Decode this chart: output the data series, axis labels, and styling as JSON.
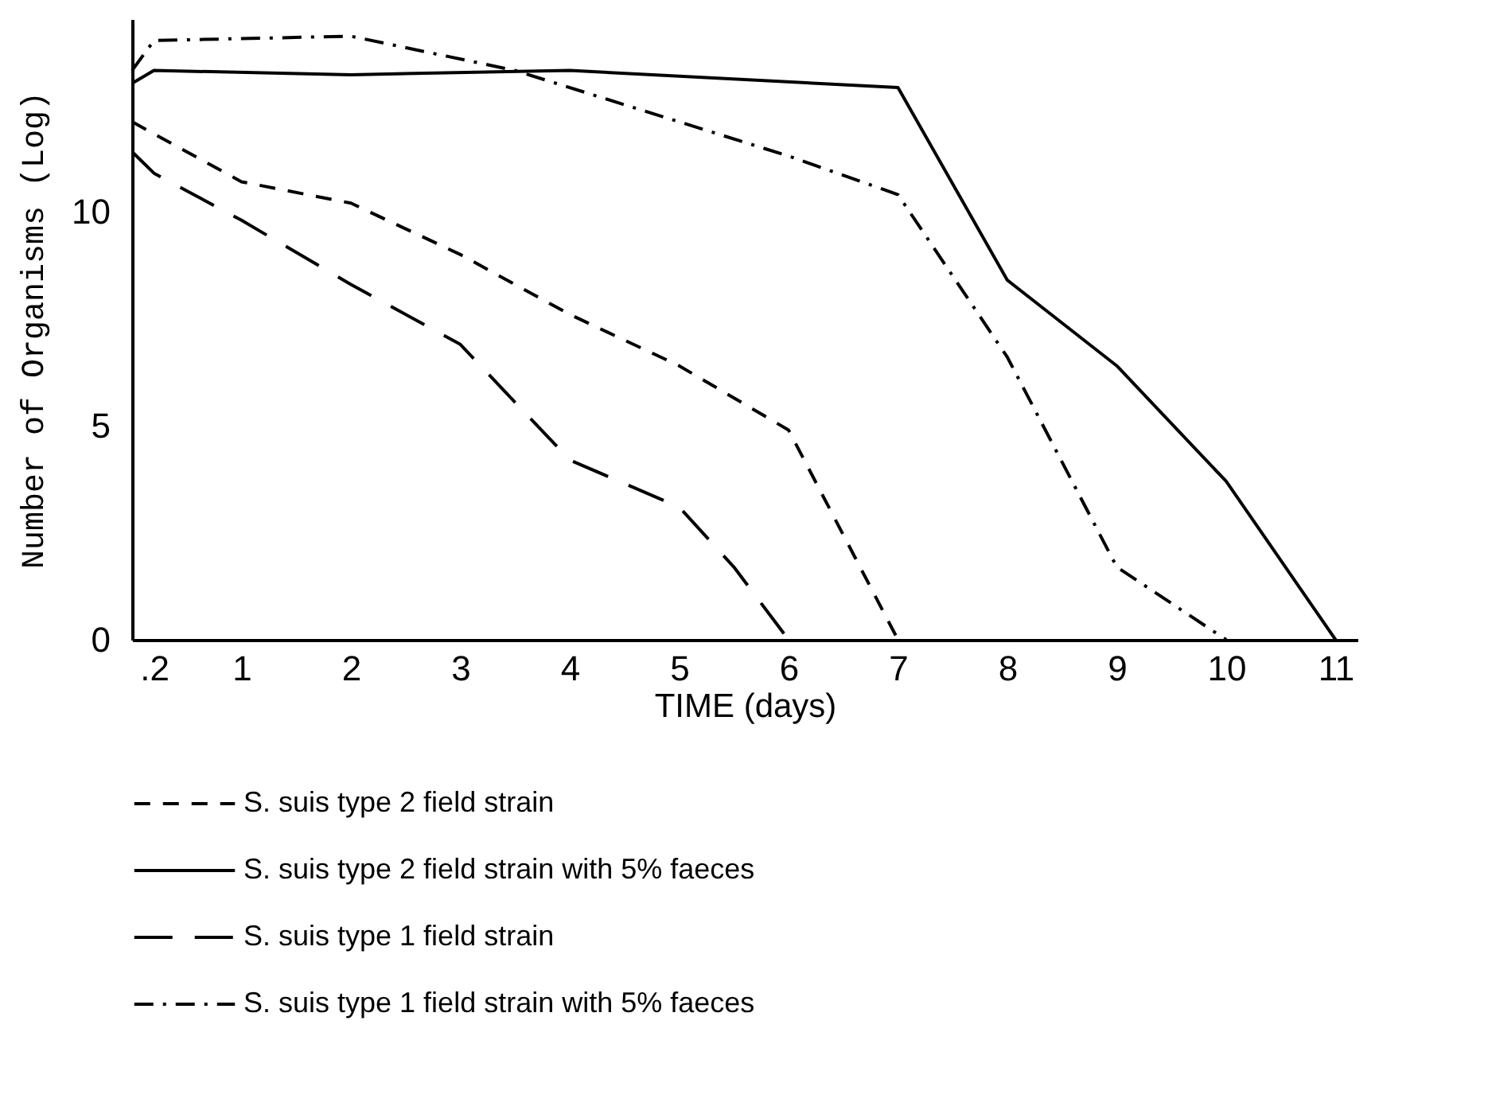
{
  "chart_data": {
    "type": "line",
    "xlabel": "TIME (days)",
    "ylabel": "Number of Organisms (Log)",
    "xlim": [
      0,
      11.2
    ],
    "xticks": [
      {
        "value": 0.2,
        "label": ".2"
      },
      1,
      2,
      3,
      4,
      5,
      6,
      7,
      8,
      9,
      10,
      11
    ],
    "ylim": [
      0,
      14.5
    ],
    "yticks": [
      0,
      5,
      10
    ],
    "grid": false,
    "legend": "bottom",
    "marker": "none",
    "series": [
      {
        "name": "S. suis type 2 field strain",
        "color": "#000000",
        "line_style": "dashed",
        "x": [
          0,
          1,
          2,
          3,
          4,
          5,
          6,
          7
        ],
        "values": [
          12.1,
          10.7,
          10.2,
          9.0,
          7.6,
          6.4,
          4.9,
          0
        ]
      },
      {
        "name": "S. suis type 2 field strain with 5% faeces",
        "color": "#000000",
        "line_style": "solid",
        "x": [
          0,
          0.2,
          2,
          4,
          7,
          8,
          9,
          10,
          11
        ],
        "values": [
          13.0,
          13.3,
          13.2,
          13.3,
          12.9,
          8.4,
          6.4,
          3.7,
          0
        ]
      },
      {
        "name": "S. suis type 1 field strain",
        "color": "#000000",
        "line_style": "longdash",
        "x": [
          0,
          0.2,
          1,
          2,
          3,
          4,
          5,
          5.5,
          6
        ],
        "values": [
          11.4,
          10.9,
          9.8,
          8.3,
          6.9,
          4.2,
          3.1,
          1.7,
          0
        ]
      },
      {
        "name": "S. suis type 1 field strain with 5% faeces",
        "color": "#000000",
        "line_style": "dashdot",
        "x": [
          0,
          0.2,
          2,
          3.5,
          6,
          7,
          8,
          9,
          10
        ],
        "values": [
          13.3,
          14.0,
          14.1,
          13.3,
          11.3,
          10.4,
          6.6,
          1.7,
          0
        ]
      }
    ]
  }
}
